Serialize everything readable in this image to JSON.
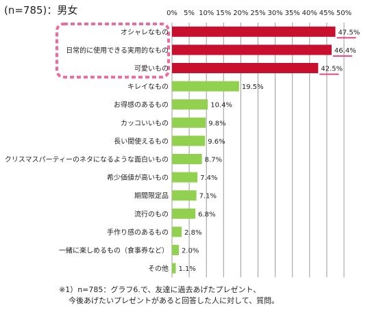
{
  "sample_label": "(n=785)：男女",
  "colors": {
    "top_bar": "#c8102e",
    "other_bar": "#92d050",
    "highlight_frame": "#ee6a9c",
    "underline": "#e8447d",
    "grid": "#9a9a9a"
  },
  "chart_data": {
    "type": "bar",
    "orientation": "horizontal",
    "title": "",
    "xlabel": "",
    "ylabel": "",
    "xlim": [
      0,
      50
    ],
    "ticks": [
      "0%",
      "5%",
      "10%",
      "15%",
      "20%",
      "25%",
      "30%",
      "35%",
      "40%",
      "45%",
      "50%"
    ],
    "tick_values": [
      0,
      5,
      10,
      15,
      20,
      25,
      30,
      35,
      40,
      45,
      50
    ],
    "grid": true,
    "categories": [
      "オシャレなもの",
      "日常的に使用できる実用的なもの",
      "可愛いもの",
      "キレイなもの",
      "お得感のあるもの",
      "カッコいいもの",
      "長い間使えるもの",
      "クリスマスパーティーのネタになるような面白いもの",
      "希少価値が高いもの",
      "期間限定品",
      "流行のもの",
      "手作り感のあるもの",
      "一緒に楽しめるもの（食事券など）",
      "その他"
    ],
    "values": [
      47.5,
      46.4,
      42.5,
      19.5,
      10.4,
      9.8,
      9.6,
      8.7,
      7.4,
      7.1,
      6.8,
      2.8,
      2.0,
      1.1
    ],
    "value_labels": [
      "47.5%",
      "46.4%",
      "42.5%",
      "19.5%",
      "10.4%",
      "9.8%",
      "9.6%",
      "8.7%",
      "7.4%",
      "7.1%",
      "6.8%",
      "2.8%",
      "2.0%",
      "1.1%"
    ],
    "highlighted_top": 3
  },
  "footnote": {
    "line1": "※1）n=785：グラフ6.で、友達に過去あげたプレゼント、",
    "line2": "今後あげたいプレゼントがあると回答した人に対して、質問。"
  }
}
